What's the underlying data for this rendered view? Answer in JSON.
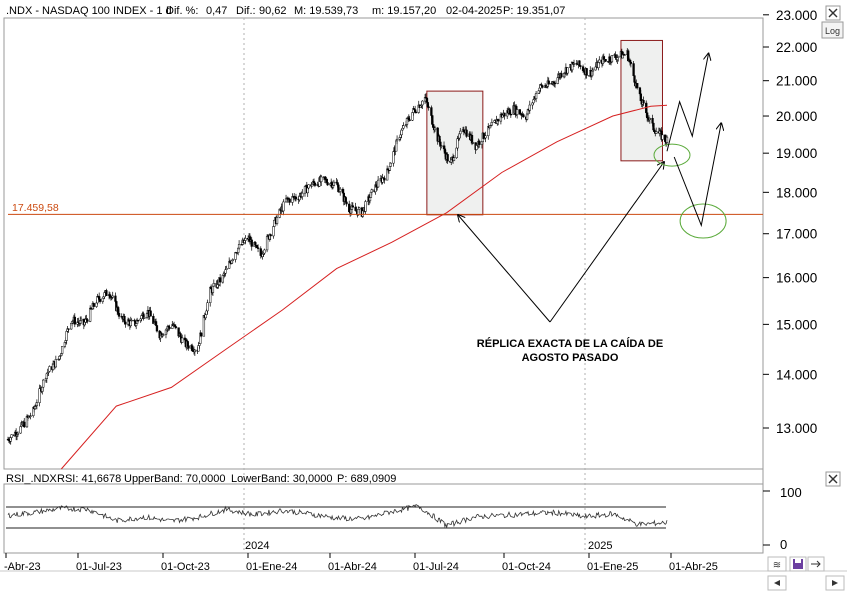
{
  "header": {
    "symbol": ".NDX - NASDAQ 100 INDEX - 1 d",
    "dif_pct_label": "Dif. %:",
    "dif_pct": "0,47",
    "dif_label": "Dif.:",
    "dif": "90,62",
    "max": "M: 19.539,73",
    "min": "m: 19.157,20",
    "date": "02-04-2025",
    "price": "P: 19.351,07"
  },
  "buttons": {
    "log": "Log"
  },
  "rsi_header": {
    "name": "RSI_.NDX",
    "value": "RSI: 41,6678",
    "upper": "UpperBand: 70,0000",
    "lower": "LowerBand: 30,0000",
    "price": "P: 689,0909"
  },
  "support_label": "17.459,58",
  "annotation": [
    "RÉPLICA EXACTA DE LA CAÍDA DE",
    "AGOSTO PASADO"
  ],
  "colors": {
    "candles": "#000000",
    "ma": "#d62020",
    "support": "#cc4a10",
    "box": "#8b1a1a",
    "circle": "#5aaa3a",
    "header_value": "#2a6fd6",
    "header_price": "#e02020",
    "rsi_line": "#333333",
    "rsi_over": "#1f5fbf"
  },
  "chart_data": [
    {
      "type": "line",
      "title": ".NDX - NASDAQ 100 INDEX - 1 d",
      "scale": "log",
      "ylim": [
        12200,
        23000
      ],
      "yticks": [
        "13.000",
        "14.000",
        "15.000",
        "16.000",
        "17.000",
        "18.000",
        "19.000",
        "20.000",
        "21.000",
        "22.000",
        "23.000"
      ],
      "xticks": [
        "-Abr-23",
        "01-Jul-23",
        "01-Oct-23",
        "01-Ene-24",
        "01-Abr-24",
        "01-Jul-24",
        "01-Oct-24",
        "01-Ene-25",
        "01-Abr-25"
      ],
      "year_markers": [
        "2024",
        "2025"
      ],
      "horizontal_line": {
        "value": 17459.58,
        "label": "17.459,58"
      },
      "series": [
        {
          "name": "",
          "style": "candles",
          "x": [
            "2023-04-03",
            "2023-04-17",
            "2023-05-01",
            "2023-05-15",
            "2023-05-29",
            "2023-06-12",
            "2023-06-26",
            "2023-07-10",
            "2023-07-24",
            "2023-08-07",
            "2023-08-21",
            "2023-09-04",
            "2023-09-18",
            "2023-10-02",
            "2023-10-16",
            "2023-10-30",
            "2023-11-13",
            "2023-11-27",
            "2023-12-11",
            "2023-12-25",
            "2024-01-08",
            "2024-01-22",
            "2024-02-05",
            "2024-02-19",
            "2024-03-04",
            "2024-03-18",
            "2024-04-01",
            "2024-04-15",
            "2024-04-29",
            "2024-05-13",
            "2024-05-27",
            "2024-06-10",
            "2024-06-24",
            "2024-07-08",
            "2024-07-22",
            "2024-08-05",
            "2024-08-19",
            "2024-09-02",
            "2024-09-16",
            "2024-09-30",
            "2024-10-14",
            "2024-10-28",
            "2024-11-11",
            "2024-11-25",
            "2024-12-09",
            "2024-12-23",
            "2025-01-06",
            "2025-01-20",
            "2025-02-03",
            "2025-02-17",
            "2025-03-03",
            "2025-03-17",
            "2025-03-31"
          ],
          "values": [
            12800,
            13000,
            13300,
            14000,
            14300,
            15100,
            15000,
            15500,
            15700,
            15100,
            15000,
            15300,
            14800,
            15000,
            14600,
            14500,
            15700,
            16000,
            16600,
            16900,
            16500,
            17200,
            17800,
            17900,
            18200,
            18300,
            18200,
            17600,
            17500,
            18100,
            18500,
            19500,
            20100,
            20500,
            19400,
            18700,
            19700,
            19200,
            19600,
            20000,
            20200,
            20000,
            20800,
            20900,
            21300,
            21500,
            21200,
            21600,
            21700,
            21800,
            20500,
            19700,
            19350
          ]
        },
        {
          "name": "",
          "style": "moving-average",
          "x": [
            "2023-06-01",
            "2023-08-01",
            "2023-10-01",
            "2023-12-01",
            "2024-02-01",
            "2024-04-01",
            "2024-06-01",
            "2024-08-01",
            "2024-10-01",
            "2024-12-01",
            "2025-02-01",
            "2025-03-15",
            "2025-04-02"
          ],
          "values": [
            12200,
            13400,
            13750,
            14500,
            15300,
            16200,
            16800,
            17500,
            18500,
            19300,
            20000,
            20270,
            20300
          ]
        }
      ],
      "annotations": {
        "boxes": [
          {
            "x": [
              "2024-07-10",
              "2024-09-10"
            ],
            "y": [
              17450,
              20700
            ]
          },
          {
            "x": [
              "2025-02-10",
              "2025-03-28"
            ],
            "y": [
              18800,
              22200
            ]
          }
        ],
        "circles": [
          {
            "x": "2025-04-02",
            "y": 18950
          },
          {
            "x": "2025-05-12",
            "y": 17300
          }
        ],
        "projected_path": [
          {
            "x": "2025-04-02",
            "y": 19050
          },
          {
            "x": "2025-04-16",
            "y": 20400
          },
          {
            "x": "2025-04-30",
            "y": 19450
          },
          {
            "x": "2025-05-18",
            "y": 21800
          }
        ],
        "projected_path_2": [
          {
            "x": "2025-04-10",
            "y": 18900
          },
          {
            "x": "2025-05-10",
            "y": 17200
          },
          {
            "x": "2025-06-01",
            "y": 19800
          }
        ],
        "callout_text": [
          "RÉPLICA EXACTA DE LA CAÍDA DE",
          "AGOSTO PASADO"
        ]
      }
    },
    {
      "type": "line",
      "title": "RSI_.NDX",
      "ylim": [
        0,
        100
      ],
      "yticks": [
        "0",
        "100"
      ],
      "bands": [
        30,
        70
      ],
      "series": [
        {
          "name": "RSI_.NDX",
          "x": [
            "2023-04-03",
            "2023-05-01",
            "2023-06-01",
            "2023-07-01",
            "2023-08-01",
            "2023-09-01",
            "2023-10-01",
            "2023-11-01",
            "2023-12-01",
            "2024-01-01",
            "2024-02-01",
            "2024-03-01",
            "2024-04-01",
            "2024-05-01",
            "2024-06-01",
            "2024-07-01",
            "2024-08-01",
            "2024-09-01",
            "2024-10-01",
            "2024-11-01",
            "2024-12-01",
            "2025-01-01",
            "2025-02-01",
            "2025-03-01",
            "2025-04-02"
          ],
          "values": [
            55,
            60,
            68,
            66,
            45,
            52,
            44,
            52,
            66,
            56,
            64,
            58,
            50,
            48,
            62,
            72,
            36,
            52,
            55,
            58,
            60,
            52,
            58,
            38,
            41.67
          ]
        }
      ]
    }
  ]
}
